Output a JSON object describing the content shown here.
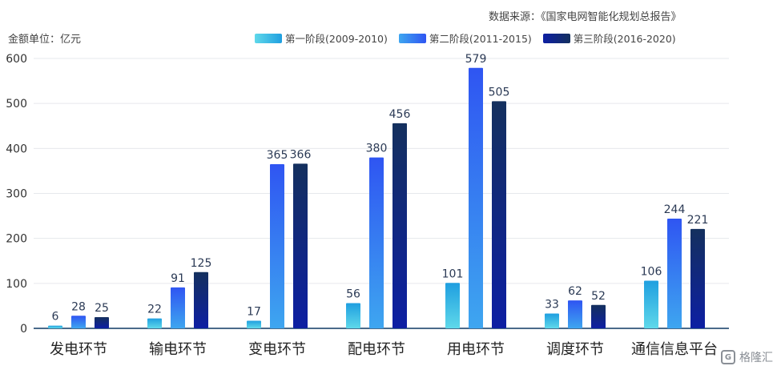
{
  "header": {
    "source": "数据来源：《国家电网智能化规划总报告》",
    "unit": "金额单位：亿元"
  },
  "watermark": {
    "logo_text": "G",
    "text": "格隆汇"
  },
  "chart_data": {
    "type": "bar",
    "title": "",
    "xlabel": "",
    "ylabel": "",
    "ylim": [
      0,
      600
    ],
    "yticks": [
      0,
      100,
      200,
      300,
      400,
      500,
      600
    ],
    "grid": true,
    "legend_position": "top-right",
    "categories": [
      "发电环节",
      "输电环节",
      "变电环节",
      "配电环节",
      "用电环节",
      "调度环节",
      "通信信息平台"
    ],
    "series": [
      {
        "name": "第一阶段(2009-2010)",
        "values": [
          6,
          22,
          17,
          56,
          101,
          33,
          106
        ],
        "color_top": "#1f9fe0",
        "color_bottom": "#5fd8ea"
      },
      {
        "name": "第二阶段(2011-2015)",
        "values": [
          28,
          91,
          365,
          380,
          579,
          62,
          244
        ],
        "color_top": "#2f55f2",
        "color_bottom": "#3ea6f0"
      },
      {
        "name": "第三阶段(2016-2020)",
        "values": [
          25,
          125,
          366,
          456,
          505,
          52,
          221
        ],
        "color_top": "#14305e",
        "color_bottom": "#0d1fa3"
      }
    ]
  }
}
